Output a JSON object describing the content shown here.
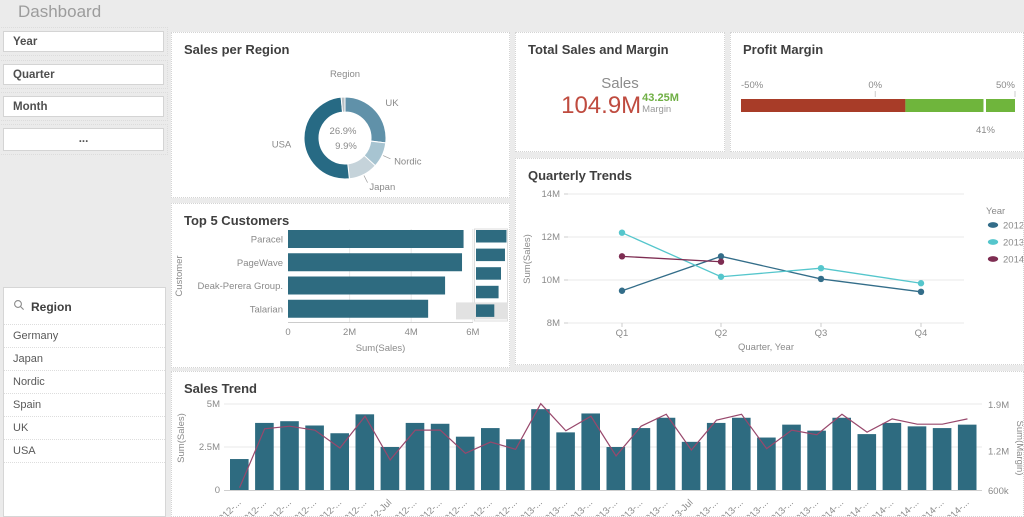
{
  "app": {
    "title": "Dashboard"
  },
  "filters": {
    "items": [
      {
        "label": "Year"
      },
      {
        "label": "Quarter"
      },
      {
        "label": "Month"
      },
      {
        "label": "..."
      }
    ]
  },
  "region_list": {
    "title": "Region",
    "items": [
      "Germany",
      "Japan",
      "Nordic",
      "Spain",
      "UK",
      "USA"
    ]
  },
  "panels": {
    "sales_per_region": {
      "title": "Sales per Region"
    },
    "top5": {
      "title": "Top 5 Customers"
    },
    "kpi": {
      "title": "Total Sales and Margin",
      "sales_label": "Sales",
      "sales_value": "104.9M",
      "margin_value": "43.25M",
      "margin_label": "Margin"
    },
    "profit_margin": {
      "title": "Profit Margin"
    },
    "quarterly": {
      "title": "Quarterly Trends"
    },
    "sales_trend": {
      "title": "Sales Trend"
    }
  },
  "colors": {
    "background": "#ebebeb",
    "panel": "#ffffff",
    "teal": "#2e6b80",
    "kpi_red": "#bf4b3f",
    "kpi_green": "#6faf44",
    "gauge_red": "#a83c28",
    "gauge_green": "#6fb53c",
    "trend_line": "#98486c"
  },
  "chart_data": [
    {
      "id": "sales-per-region",
      "type": "pie",
      "title": "Region",
      "slices": [
        {
          "label": "UK",
          "value": 26.9,
          "color": "#6091a9"
        },
        {
          "label": "Nordic",
          "value": 9.9,
          "color": "#a7c4d1",
          "leader": true
        },
        {
          "label": "Japan",
          "value": 11.5,
          "color": "#c5d3da",
          "leader": true
        },
        {
          "label": "USA",
          "value": 50.2,
          "color": "#276a84"
        },
        {
          "label": "",
          "value": 1.5,
          "color": "#b9c0c5"
        }
      ],
      "center_labels": [
        "26.9%",
        "9.9%"
      ]
    },
    {
      "id": "top5-customers",
      "type": "bar",
      "orientation": "horizontal",
      "categories": [
        "Paracel",
        "PageWave",
        "Deak-Perera Group.",
        "Talarian"
      ],
      "values": [
        5.7,
        5.65,
        5.1,
        4.55
      ],
      "xlabel": "Sum(Sales)",
      "ylabel": "Customer",
      "xticks": [
        {
          "label": "0",
          "value": 0
        },
        {
          "label": "2M",
          "value": 2
        },
        {
          "label": "4M",
          "value": 4
        },
        {
          "label": "6M",
          "value": 6
        }
      ],
      "xlim": [
        0,
        6
      ],
      "minimap": {
        "values": [
          1,
          0.95,
          0.82,
          0.74,
          0.6
        ],
        "highlight_index": 4
      }
    },
    {
      "id": "profit-margin",
      "type": "gauge",
      "min": -50,
      "max": 50,
      "value": 41,
      "value_label": "41%",
      "ticks": [
        {
          "label": "-50%",
          "pos": 0
        },
        {
          "label": "0%",
          "pos": 0.49
        },
        {
          "label": "50%",
          "pos": 1
        }
      ],
      "segments": [
        {
          "until": 0.6,
          "color": "#a83c28"
        },
        {
          "until": 1,
          "color": "#6fb53c"
        }
      ],
      "marker_pos": 0.885
    },
    {
      "id": "quarterly-trends",
      "type": "line",
      "categories": [
        "Q1",
        "Q2",
        "Q3",
        "Q4"
      ],
      "xlabel": "Quarter, Year",
      "ylabel": "Sum(Sales)",
      "yticks": [
        {
          "label": "8M",
          "value": 8
        },
        {
          "label": "10M",
          "value": 10
        },
        {
          "label": "12M",
          "value": 12
        },
        {
          "label": "14M",
          "value": 14
        }
      ],
      "ylim": [
        8,
        14
      ],
      "legend_title": "Year",
      "series": [
        {
          "name": "2012",
          "color": "#336d89",
          "values": [
            9.5,
            11.1,
            10.05,
            9.45
          ]
        },
        {
          "name": "2013",
          "color": "#55c6cc",
          "values": [
            12.2,
            10.15,
            10.55,
            9.85
          ]
        },
        {
          "name": "2014",
          "color": "#7e2d52",
          "values": [
            11.1,
            10.85,
            null,
            null
          ]
        }
      ]
    },
    {
      "id": "sales-trend",
      "type": "bar",
      "combo": true,
      "categories": [
        "2012-...",
        "2012-...",
        "2012-...",
        "2012-...",
        "2012-...",
        "2012-...",
        "2012-Jul",
        "2012-...",
        "2012-...",
        "2012-...",
        "2012-...",
        "2012-...",
        "2013-...",
        "2013-...",
        "2013-...",
        "2013-...",
        "2013-...",
        "2013-...",
        "2013-Jul",
        "2013-...",
        "2013-...",
        "2013-...",
        "2013-...",
        "2013-...",
        "2014-...",
        "2014-...",
        "2014-...",
        "2014-...",
        "2014-...",
        "2014-..."
      ],
      "bars": {
        "name": "Sum(Sales)",
        "axis": "left",
        "color": "#2e6b80",
        "values": [
          1.8,
          3.9,
          4.0,
          3.75,
          3.3,
          4.4,
          2.5,
          3.9,
          3.85,
          3.1,
          3.6,
          2.95,
          4.7,
          3.35,
          4.45,
          2.5,
          3.6,
          4.2,
          2.8,
          3.9,
          4.2,
          3.05,
          3.8,
          3.45,
          4.2,
          3.25,
          3.9,
          3.7,
          3.6,
          3.8
        ]
      },
      "line": {
        "name": "Sum(Margin)",
        "axis": "right",
        "color": "#98486c",
        "values": [
          0.65,
          1.54,
          1.58,
          1.52,
          1.25,
          1.73,
          1.07,
          1.52,
          1.52,
          1.17,
          1.34,
          1.23,
          1.92,
          1.51,
          1.73,
          1.13,
          1.58,
          1.76,
          1.22,
          1.67,
          1.76,
          1.24,
          1.52,
          1.45,
          1.76,
          1.49,
          1.69,
          1.61,
          1.61,
          1.69
        ]
      },
      "left_axis": {
        "label": "Sum(Sales)",
        "ticks": [
          {
            "label": "0",
            "value": 0
          },
          {
            "label": "2.5M",
            "value": 2.5
          },
          {
            "label": "5M",
            "value": 5
          }
        ],
        "lim": [
          0,
          5
        ]
      },
      "right_axis": {
        "label": "Sum(Margin)",
        "ticks": [
          {
            "label": "600k",
            "value": 0.6
          },
          {
            "label": "1.2M",
            "value": 1.2
          },
          {
            "label": "1.9M",
            "value": 1.9
          }
        ],
        "lim": [
          0.6,
          1.9
        ]
      }
    }
  ]
}
